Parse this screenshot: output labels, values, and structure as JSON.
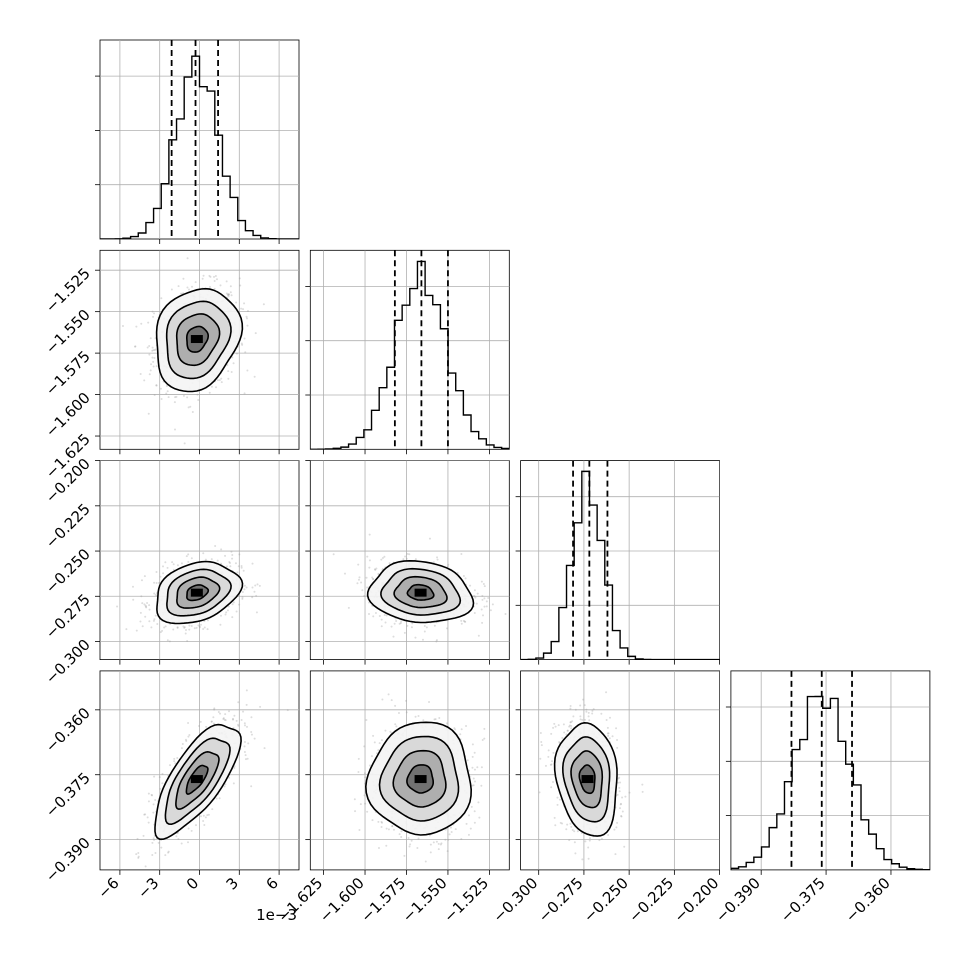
{
  "chart_data": {
    "type": "corner",
    "title": "",
    "grid": true,
    "colors": {
      "histogram": "#000000",
      "points": "#9e9e9e",
      "density": "#000000",
      "contour": "#000000",
      "grid": "#b0b0b0"
    },
    "parameters": [
      {
        "label": "",
        "range": [
          -7.5,
          7.5
        ],
        "ticks": [
          -6,
          -3,
          0,
          3,
          6
        ],
        "tick_labels": [
          "−6",
          "−3",
          "0",
          "3",
          "6"
        ],
        "offset_label": "1e−3",
        "mean": -0.2,
        "sigma": 1.6,
        "quantiles": [
          -2.1,
          -0.3,
          1.4
        ],
        "hist_bins": 26
      },
      {
        "label": "",
        "range": [
          -1.633,
          -1.513
        ],
        "ticks": [
          -1.625,
          -1.6,
          -1.575,
          -1.55,
          -1.525
        ],
        "tick_labels": [
          "−1.625",
          "−1.600",
          "−1.575",
          "−1.550",
          "−1.525"
        ],
        "offset_label": "",
        "mean": -1.5665,
        "sigma": 0.0155,
        "quantiles": [
          -1.582,
          -1.566,
          -1.55
        ],
        "hist_bins": 26
      },
      {
        "label": "",
        "range": [
          -0.31,
          -0.2
        ],
        "ticks": [
          -0.3,
          -0.275,
          -0.25,
          -0.225,
          -0.2
        ],
        "tick_labels": [
          "−0.300",
          "−0.275",
          "−0.250",
          "−0.225",
          "−0.200"
        ],
        "offset_label": "",
        "mean": -0.273,
        "sigma": 0.0085,
        "quantiles": [
          -0.281,
          -0.272,
          -0.262
        ],
        "hist_bins": 26
      },
      {
        "label": "",
        "range": [
          -0.397,
          -0.351
        ],
        "ticks": [
          -0.39,
          -0.375,
          -0.36
        ],
        "tick_labels": [
          "−0.390",
          "−0.375",
          "−0.360"
        ],
        "offset_label": "",
        "mean": -0.376,
        "sigma": 0.0065,
        "quantiles": [
          -0.383,
          -0.376,
          -0.369
        ],
        "hist_bins": 26
      }
    ],
    "correlations": [
      [
        1.0,
        0.18,
        0.28,
        0.72
      ],
      [
        0.18,
        1.0,
        -0.12,
        0.02
      ],
      [
        0.28,
        -0.12,
        1.0,
        -0.15
      ],
      [
        0.72,
        0.02,
        -0.15,
        1.0
      ]
    ],
    "contour_levels_sigma": [
      0.5,
      1.0,
      1.5,
      2.0
    ]
  }
}
